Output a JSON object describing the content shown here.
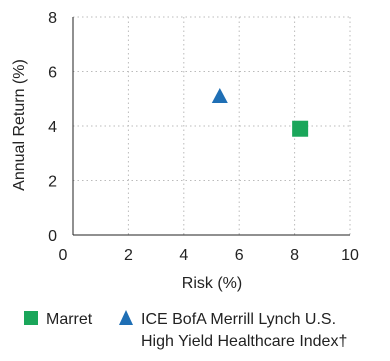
{
  "chart_data": {
    "type": "scatter",
    "xlabel": "Risk (%)",
    "ylabel": "Annual Return (%)",
    "xlim": [
      0,
      10
    ],
    "ylim": [
      0,
      8
    ],
    "xticks": [
      0,
      2,
      4,
      6,
      8,
      10
    ],
    "yticks": [
      0,
      2,
      4,
      6,
      8
    ],
    "grid": true,
    "legend_position": "bottom",
    "series": [
      {
        "name": "Marret",
        "marker": "square",
        "color": "#1aa65a",
        "points": [
          {
            "x": 8.2,
            "y": 3.9
          }
        ]
      },
      {
        "name": "ICE BofA Merrill Lynch U.S. High Yield Healthcare Index†",
        "name_lines": [
          "ICE BofA Merrill Lynch U.S.",
          "High Yield Healthcare Index†"
        ],
        "marker": "triangle",
        "color": "#1f6fb5",
        "points": [
          {
            "x": 5.3,
            "y": 5.1
          }
        ]
      }
    ]
  }
}
